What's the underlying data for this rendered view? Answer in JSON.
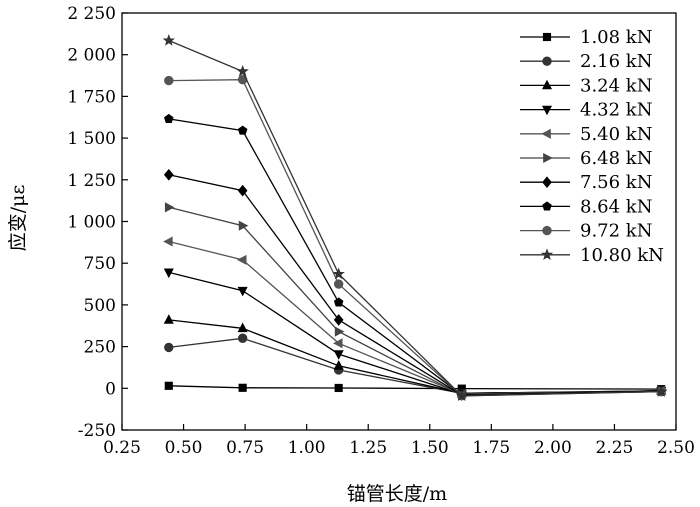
{
  "chart_data": {
    "type": "line",
    "xlabel": "锚管长度/m",
    "ylabel": "应变/με",
    "xlim": [
      0.25,
      2.5
    ],
    "ylim": [
      -250,
      2250
    ],
    "x_ticks": [
      "0.25",
      "0.50",
      "0.75",
      "1.00",
      "1.25",
      "1.50",
      "1.75",
      "2.00",
      "2.25",
      "2.50"
    ],
    "y_ticks": [
      "-250",
      "0",
      "250",
      "500",
      "750",
      "1 000",
      "1 250",
      "1 500",
      "1 750",
      "2 000",
      "2 250"
    ],
    "grid": false,
    "legend_position": "top-right",
    "x": [
      0.44,
      0.74,
      1.13,
      1.63,
      2.44
    ],
    "series": [
      {
        "name": "1.08 kN",
        "marker": "square",
        "color": "#000000",
        "values": [
          15,
          3,
          2,
          -2,
          -5
        ]
      },
      {
        "name": "2.16 kN",
        "marker": "circle",
        "color": "#333333",
        "values": [
          245,
          300,
          110,
          -30,
          -15
        ]
      },
      {
        "name": "3.24 kN",
        "marker": "triangle-up",
        "color": "#000000",
        "values": [
          410,
          360,
          135,
          -30,
          -15
        ]
      },
      {
        "name": "4.32 kN",
        "marker": "triangle-down",
        "color": "#000000",
        "values": [
          695,
          585,
          205,
          -35,
          -15
        ]
      },
      {
        "name": "5.40 kN",
        "marker": "triangle-left",
        "color": "#555555",
        "values": [
          880,
          770,
          270,
          -35,
          -15
        ]
      },
      {
        "name": "6.48 kN",
        "marker": "triangle-right",
        "color": "#444444",
        "values": [
          1085,
          975,
          340,
          -40,
          -15
        ]
      },
      {
        "name": "7.56 kN",
        "marker": "diamond",
        "color": "#000000",
        "values": [
          1280,
          1185,
          410,
          -40,
          -15
        ]
      },
      {
        "name": "8.64 kN",
        "marker": "pentagon",
        "color": "#000000",
        "values": [
          1615,
          1545,
          515,
          -40,
          -20
        ]
      },
      {
        "name": "9.72 kN",
        "marker": "circle",
        "color": "#555555",
        "values": [
          1845,
          1850,
          625,
          -45,
          -20
        ]
      },
      {
        "name": "10.80 kN",
        "marker": "star",
        "color": "#333333",
        "values": [
          2085,
          1900,
          685,
          -45,
          -20
        ]
      }
    ]
  }
}
